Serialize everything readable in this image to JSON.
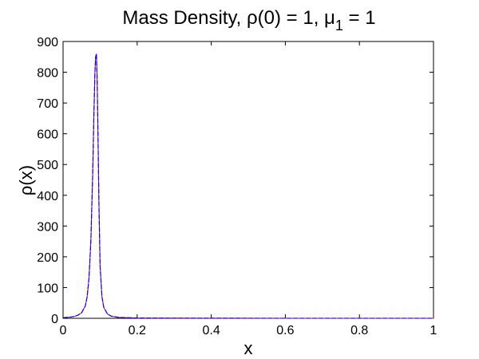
{
  "chart_data": {
    "type": "line",
    "title_prefix": "Mass Density, ρ(0) = 1, μ",
    "title_subscript": "1",
    "title_suffix": " = 1",
    "xlabel": "x",
    "ylabel": "ρ(x)",
    "xlim": [
      0,
      1
    ],
    "ylim": [
      0,
      900
    ],
    "xticks": [
      "0",
      "0.2",
      "0.4",
      "0.6",
      "0.8",
      "1"
    ],
    "yticks": [
      "0",
      "100",
      "200",
      "300",
      "400",
      "500",
      "600",
      "700",
      "800",
      "900"
    ],
    "grid": false,
    "colors": {
      "series_primary": "#0000ff",
      "series_secondary": "#ff0000",
      "axes": "#000000",
      "background": "#ffffff"
    },
    "series": [
      {
        "x": [
          0,
          0.01,
          0.02,
          0.03,
          0.04,
          0.05,
          0.06,
          0.065,
          0.07,
          0.075,
          0.08,
          0.083,
          0.086,
          0.088,
          0.09,
          0.092,
          0.094,
          0.097,
          0.1,
          0.105,
          0.11,
          0.12,
          0.13,
          0.15,
          0.2,
          0.3,
          0.4,
          0.5,
          0.6,
          0.7,
          0.8,
          0.9,
          1.0
        ],
        "y": [
          2,
          3,
          4,
          6,
          10,
          18,
          40,
          70,
          130,
          250,
          470,
          650,
          800,
          850,
          860,
          780,
          620,
          360,
          170,
          70,
          35,
          14,
          7,
          3,
          1,
          0.5,
          0.3,
          0.2,
          0.1,
          0.1,
          0.1,
          0.1,
          0.1
        ]
      }
    ]
  }
}
